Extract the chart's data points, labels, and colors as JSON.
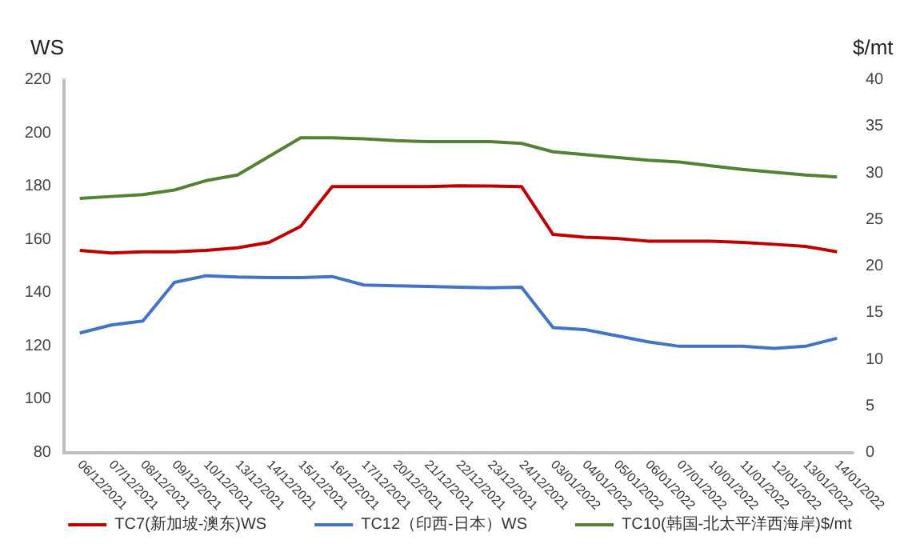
{
  "chart_data": {
    "type": "line",
    "ylabel": "WS",
    "y2label": "$/mt",
    "categories": [
      "06/12/2021",
      "07/12/2021",
      "08/12/2021",
      "09/12/2021",
      "10/12/2021",
      "13/12/2021",
      "14/12/2021",
      "15/12/2021",
      "16/12/2021",
      "17/12/2021",
      "20/12/2021",
      "21/12/2021",
      "22/12/2021",
      "23/12/2021",
      "24/12/2021",
      "03/01/2022",
      "04/01/2022",
      "05/01/2022",
      "06/01/2022",
      "07/01/2022",
      "10/01/2022",
      "11/01/2022",
      "12/01/2022",
      "13/01/2022",
      "14/01/2022"
    ],
    "series": [
      {
        "name": "TC7(新加坡-澳东)WS",
        "color": "#c00000",
        "values": [
          156,
          155,
          155.5,
          155.5,
          156,
          157,
          159,
          165,
          180,
          180,
          180,
          180,
          180.3,
          180.2,
          180,
          162,
          161,
          160.5,
          159.5,
          159.5,
          159.5,
          159,
          158.3,
          157.5,
          155.5
        ]
      },
      {
        "name": "TC12（印西-日本）WS",
        "color": "#4472c4",
        "values": [
          125,
          128,
          129.5,
          144,
          146.5,
          146,
          145.8,
          145.8,
          146.2,
          143,
          142.7,
          142.5,
          142.2,
          142,
          142.2,
          127,
          126.3,
          124,
          121.7,
          120,
          120,
          120,
          119.2,
          120,
          123
        ]
      },
      {
        "name": "TC10(韩国-北太平洋西海岸)$/mt",
        "color": "#548235",
        "axis": "y2",
        "values": [
          27.3,
          27.5,
          27.7,
          28.2,
          29.2,
          29.8,
          31.8,
          33.8,
          33.8,
          33.7,
          33.5,
          33.4,
          33.4,
          33.4,
          33.2,
          32.3,
          32.0,
          31.7,
          31.4,
          31.2,
          30.8,
          30.4,
          30.1,
          29.8,
          29.6
        ]
      }
    ],
    "ylim": [
      80,
      220
    ],
    "yticks": [
      80,
      100,
      120,
      140,
      160,
      180,
      200,
      220
    ],
    "y2lim": [
      0,
      40
    ],
    "y2ticks": [
      0,
      5,
      10,
      15,
      20,
      25,
      30,
      35,
      40
    ],
    "grid": false,
    "legend": "bottom",
    "marker": "none",
    "line_style": "solid"
  }
}
